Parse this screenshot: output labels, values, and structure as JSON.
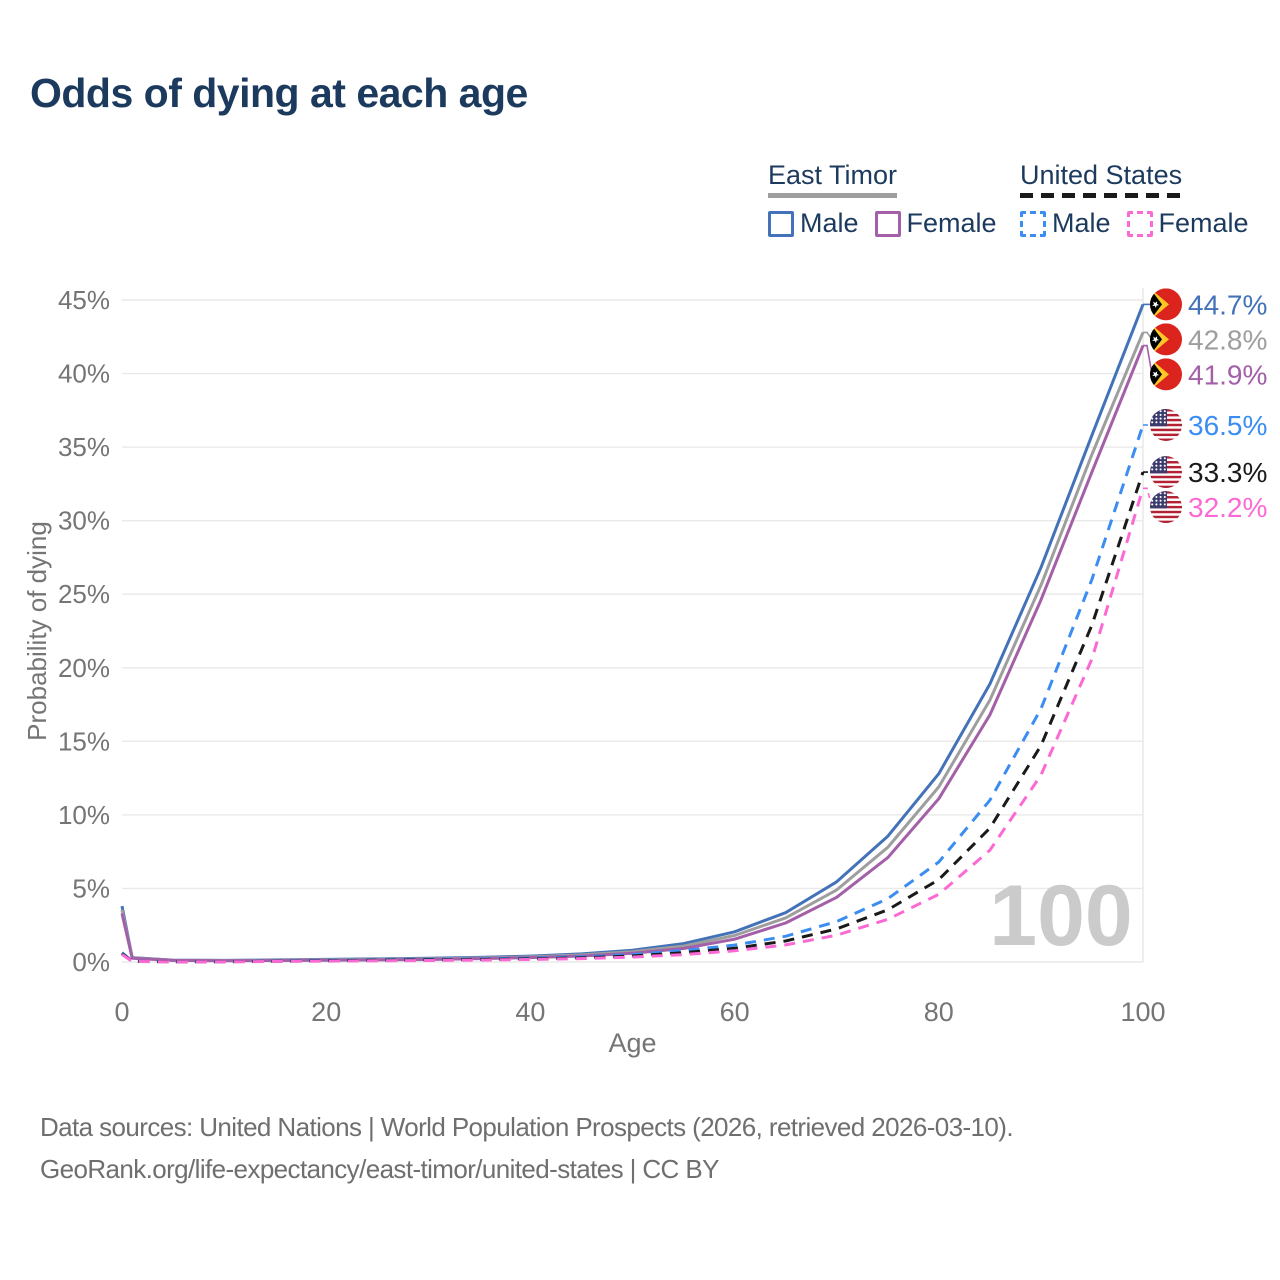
{
  "title": "Odds of dying at each age",
  "legend": {
    "groups": [
      {
        "name": "East Timor",
        "style": "solid",
        "underline_color": "#9e9e9e",
        "items": [
          {
            "label": "Male",
            "color": "#4472b8"
          },
          {
            "label": "Female",
            "color": "#a35fa8"
          }
        ]
      },
      {
        "name": "United States",
        "style": "dashed",
        "underline_color": "#1a1a1a",
        "items": [
          {
            "label": "Male",
            "color": "#3b8df2"
          },
          {
            "label": "Female",
            "color": "#fb6ad4"
          }
        ]
      }
    ]
  },
  "watermark": "100",
  "footer": {
    "line1": "Data sources: United Nations | World Population Prospects (2026, retrieved 2026-03-10).",
    "line2": "GeoRank.org/life-expectancy/east-timor/united-states | CC BY"
  },
  "chart_data": {
    "type": "line",
    "title": "Odds of dying at each age",
    "xlabel": "Age",
    "ylabel": "Probability of dying",
    "xlim": [
      0,
      100
    ],
    "ylim": [
      0,
      45
    ],
    "x_ticks": [
      0,
      20,
      40,
      60,
      80,
      100
    ],
    "y_tick_step": 5,
    "y_tick_suffix": "%",
    "grid": "horizontal",
    "legend_position": "top-right",
    "highlighted_age": 100,
    "series": [
      {
        "name": "East Timor Male",
        "country": "East Timor",
        "sex": "Male",
        "group": "east-timor",
        "color": "#4472b8",
        "dash": "solid",
        "flag": "east-timor",
        "end_label": "44.7%",
        "end_value": 44.7,
        "points": [
          [
            0,
            3.8
          ],
          [
            1,
            0.3
          ],
          [
            5,
            0.13
          ],
          [
            10,
            0.11
          ],
          [
            15,
            0.14
          ],
          [
            20,
            0.18
          ],
          [
            25,
            0.21
          ],
          [
            30,
            0.25
          ],
          [
            35,
            0.31
          ],
          [
            40,
            0.4
          ],
          [
            45,
            0.55
          ],
          [
            50,
            0.8
          ],
          [
            55,
            1.25
          ],
          [
            60,
            2.05
          ],
          [
            65,
            3.35
          ],
          [
            70,
            5.45
          ],
          [
            75,
            8.55
          ],
          [
            80,
            12.8
          ],
          [
            85,
            18.9
          ],
          [
            90,
            26.8
          ],
          [
            95,
            35.8
          ],
          [
            100,
            44.7
          ]
        ]
      },
      {
        "name": "East Timor Both sexes",
        "country": "East Timor",
        "sex": "Both",
        "group": "east-timor",
        "color": "#9e9e9e",
        "dash": "solid",
        "flag": "east-timor",
        "end_label": "42.8%",
        "end_value": 42.8,
        "points": [
          [
            0,
            3.55
          ],
          [
            1,
            0.28
          ],
          [
            5,
            0.12
          ],
          [
            10,
            0.1
          ],
          [
            15,
            0.12
          ],
          [
            20,
            0.15
          ],
          [
            25,
            0.18
          ],
          [
            30,
            0.21
          ],
          [
            35,
            0.27
          ],
          [
            40,
            0.35
          ],
          [
            45,
            0.48
          ],
          [
            50,
            0.7
          ],
          [
            55,
            1.08
          ],
          [
            60,
            1.8
          ],
          [
            65,
            3.0
          ],
          [
            70,
            4.9
          ],
          [
            75,
            7.8
          ],
          [
            80,
            11.9
          ],
          [
            85,
            17.8
          ],
          [
            90,
            25.6
          ],
          [
            95,
            34.5
          ],
          [
            100,
            42.8
          ]
        ]
      },
      {
        "name": "East Timor Female",
        "country": "East Timor",
        "sex": "Female",
        "group": "east-timor",
        "color": "#a35fa8",
        "dash": "solid",
        "flag": "east-timor",
        "end_label": "41.9%",
        "end_value": 41.9,
        "points": [
          [
            0,
            3.3
          ],
          [
            1,
            0.26
          ],
          [
            5,
            0.11
          ],
          [
            10,
            0.09
          ],
          [
            15,
            0.1
          ],
          [
            20,
            0.12
          ],
          [
            25,
            0.14
          ],
          [
            30,
            0.17
          ],
          [
            35,
            0.23
          ],
          [
            40,
            0.3
          ],
          [
            45,
            0.41
          ],
          [
            50,
            0.6
          ],
          [
            55,
            0.92
          ],
          [
            60,
            1.55
          ],
          [
            65,
            2.65
          ],
          [
            70,
            4.4
          ],
          [
            75,
            7.1
          ],
          [
            80,
            11.1
          ],
          [
            85,
            16.8
          ],
          [
            90,
            24.6
          ],
          [
            95,
            33.3
          ],
          [
            100,
            41.9
          ]
        ]
      },
      {
        "name": "United States Male",
        "country": "United States",
        "sex": "Male",
        "group": "united-states",
        "color": "#3b8df2",
        "dash": "dashed",
        "flag": "united-states",
        "end_label": "36.5%",
        "end_value": 36.5,
        "points": [
          [
            0,
            0.64
          ],
          [
            1,
            0.05
          ],
          [
            5,
            0.02
          ],
          [
            10,
            0.02
          ],
          [
            15,
            0.07
          ],
          [
            20,
            0.12
          ],
          [
            25,
            0.15
          ],
          [
            30,
            0.18
          ],
          [
            35,
            0.21
          ],
          [
            40,
            0.26
          ],
          [
            45,
            0.35
          ],
          [
            50,
            0.5
          ],
          [
            55,
            0.78
          ],
          [
            60,
            1.15
          ],
          [
            65,
            1.75
          ],
          [
            70,
            2.75
          ],
          [
            75,
            4.3
          ],
          [
            80,
            6.8
          ],
          [
            85,
            11.0
          ],
          [
            90,
            17.2
          ],
          [
            95,
            26.0
          ],
          [
            100,
            36.5
          ]
        ]
      },
      {
        "name": "United States Both sexes",
        "country": "United States",
        "sex": "Both",
        "group": "united-states",
        "color": "#1a1a1a",
        "dash": "dashed",
        "flag": "united-states",
        "end_label": "33.3%",
        "end_value": 33.3,
        "points": [
          [
            0,
            0.58
          ],
          [
            1,
            0.04
          ],
          [
            5,
            0.02
          ],
          [
            10,
            0.02
          ],
          [
            15,
            0.05
          ],
          [
            20,
            0.09
          ],
          [
            25,
            0.12
          ],
          [
            30,
            0.14
          ],
          [
            35,
            0.17
          ],
          [
            40,
            0.21
          ],
          [
            45,
            0.28
          ],
          [
            50,
            0.41
          ],
          [
            55,
            0.63
          ],
          [
            60,
            0.93
          ],
          [
            65,
            1.43
          ],
          [
            70,
            2.25
          ],
          [
            75,
            3.55
          ],
          [
            80,
            5.6
          ],
          [
            85,
            9.1
          ],
          [
            90,
            14.7
          ],
          [
            95,
            22.9
          ],
          [
            100,
            33.3
          ]
        ]
      },
      {
        "name": "United States Female",
        "country": "United States",
        "sex": "Female",
        "group": "united-states",
        "color": "#fb6ad4",
        "dash": "dashed",
        "flag": "united-states",
        "end_label": "32.2%",
        "end_value": 32.2,
        "points": [
          [
            0,
            0.52
          ],
          [
            1,
            0.04
          ],
          [
            5,
            0.01
          ],
          [
            10,
            0.01
          ],
          [
            15,
            0.04
          ],
          [
            20,
            0.06
          ],
          [
            25,
            0.08
          ],
          [
            30,
            0.1
          ],
          [
            35,
            0.13
          ],
          [
            40,
            0.17
          ],
          [
            45,
            0.23
          ],
          [
            50,
            0.33
          ],
          [
            55,
            0.5
          ],
          [
            60,
            0.76
          ],
          [
            65,
            1.16
          ],
          [
            70,
            1.82
          ],
          [
            75,
            2.9
          ],
          [
            80,
            4.6
          ],
          [
            85,
            7.6
          ],
          [
            90,
            12.7
          ],
          [
            95,
            20.6
          ],
          [
            100,
            32.2
          ]
        ]
      }
    ]
  }
}
